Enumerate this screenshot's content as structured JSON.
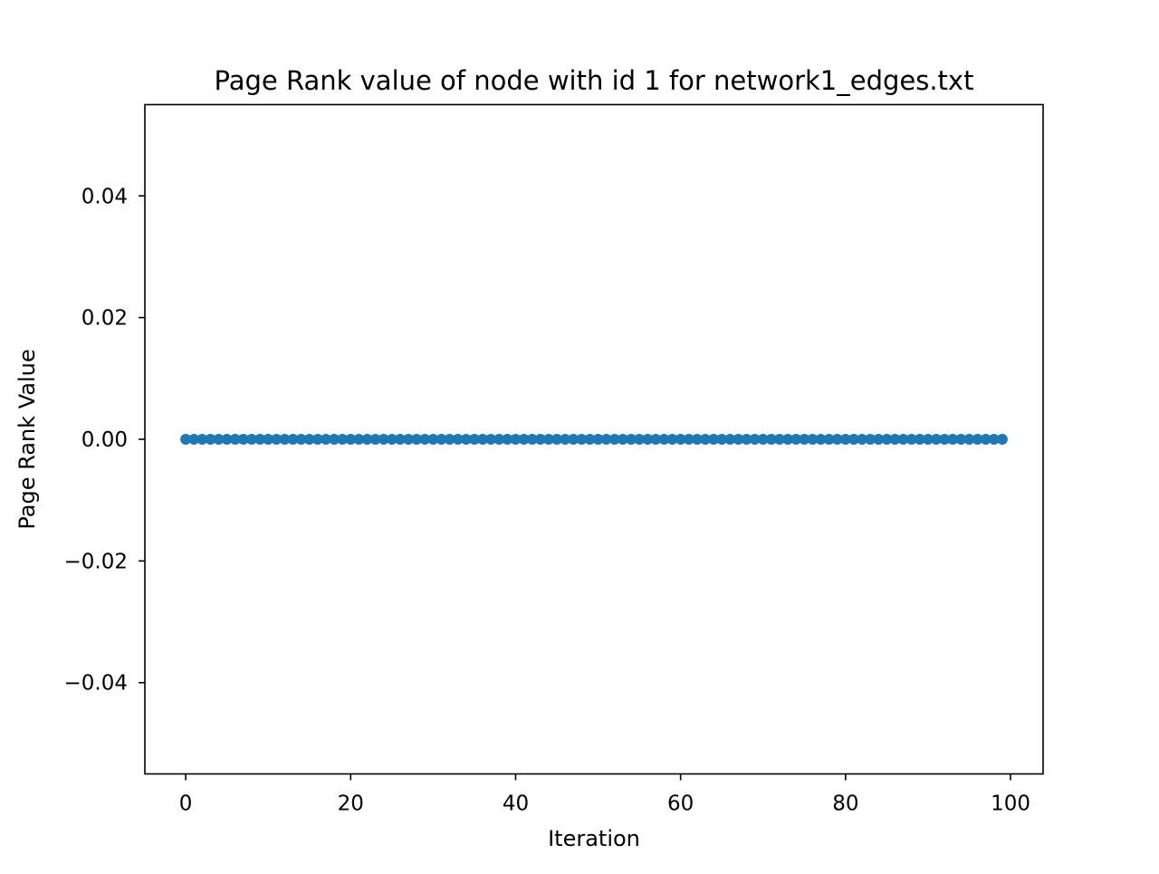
{
  "chart_data": {
    "type": "scatter",
    "title": "Page Rank value of node with id 1 for network1_edges.txt",
    "xlabel": "Iteration",
    "ylabel": "Page Rank Value",
    "xlim": [
      -4.95,
      103.95
    ],
    "ylim": [
      -0.055,
      0.055
    ],
    "x_ticks": [
      0,
      20,
      40,
      60,
      80,
      100
    ],
    "x_tick_labels": [
      "0",
      "20",
      "40",
      "60",
      "80",
      "100"
    ],
    "y_ticks": [
      -0.04,
      -0.02,
      0.0,
      0.02,
      0.04
    ],
    "y_tick_labels": [
      "−0.04",
      "−0.02",
      "0.00",
      "0.02",
      "0.04"
    ],
    "grid": false,
    "legend": "none",
    "series": [
      {
        "color": "#1f77b4",
        "x_start": 0,
        "x_end": 99,
        "x_step": 1,
        "y_constant": 0.0
      }
    ]
  }
}
